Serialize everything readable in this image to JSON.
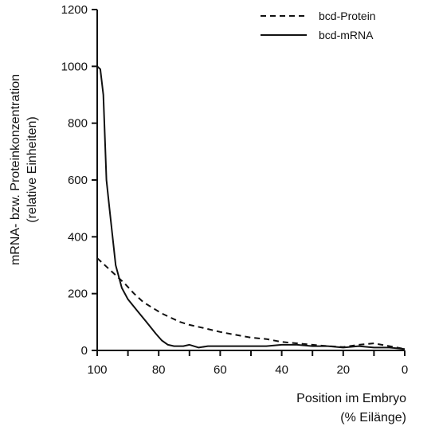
{
  "chart_data": {
    "type": "line",
    "title": "",
    "xlabel": [
      "Position im Embryo",
      "(% Eilänge)"
    ],
    "ylabel": [
      "mRNA- bzw. Proteinkonzentration",
      "(relative Einheiten)"
    ],
    "xlim": [
      100,
      0
    ],
    "ylim": [
      0,
      1200
    ],
    "x_ticks": [
      "100",
      "80",
      "60",
      "40",
      "20",
      "0"
    ],
    "y_ticks": [
      "0",
      "200",
      "400",
      "600",
      "800",
      "1000",
      "1200"
    ],
    "legend_position": "top-right",
    "grid": false,
    "series": [
      {
        "name": "bcd-Protein",
        "style": "dashed",
        "color": "#111111",
        "x": [
          100,
          97,
          94,
          91,
          88,
          85,
          82,
          79,
          76,
          73,
          70,
          65,
          60,
          55,
          50,
          45,
          40,
          35,
          30,
          25,
          20,
          15,
          10,
          5,
          0
        ],
        "y": [
          325,
          295,
          265,
          235,
          200,
          170,
          150,
          130,
          115,
          100,
          90,
          78,
          65,
          55,
          45,
          40,
          30,
          25,
          20,
          15,
          12,
          20,
          25,
          15,
          5
        ]
      },
      {
        "name": "bcd-mRNA",
        "style": "solid",
        "color": "#111111",
        "x": [
          100,
          99,
          98,
          97,
          96,
          95,
          94,
          92,
          90,
          87,
          84,
          81,
          79,
          77,
          75,
          72,
          70,
          67,
          64,
          60,
          55,
          50,
          45,
          40,
          35,
          30,
          25,
          20,
          15,
          10,
          5,
          0
        ],
        "y": [
          1000,
          990,
          900,
          600,
          500,
          400,
          300,
          220,
          180,
          140,
          100,
          60,
          35,
          20,
          15,
          15,
          20,
          10,
          15,
          15,
          15,
          15,
          15,
          20,
          20,
          15,
          15,
          10,
          15,
          10,
          10,
          5
        ]
      }
    ]
  }
}
